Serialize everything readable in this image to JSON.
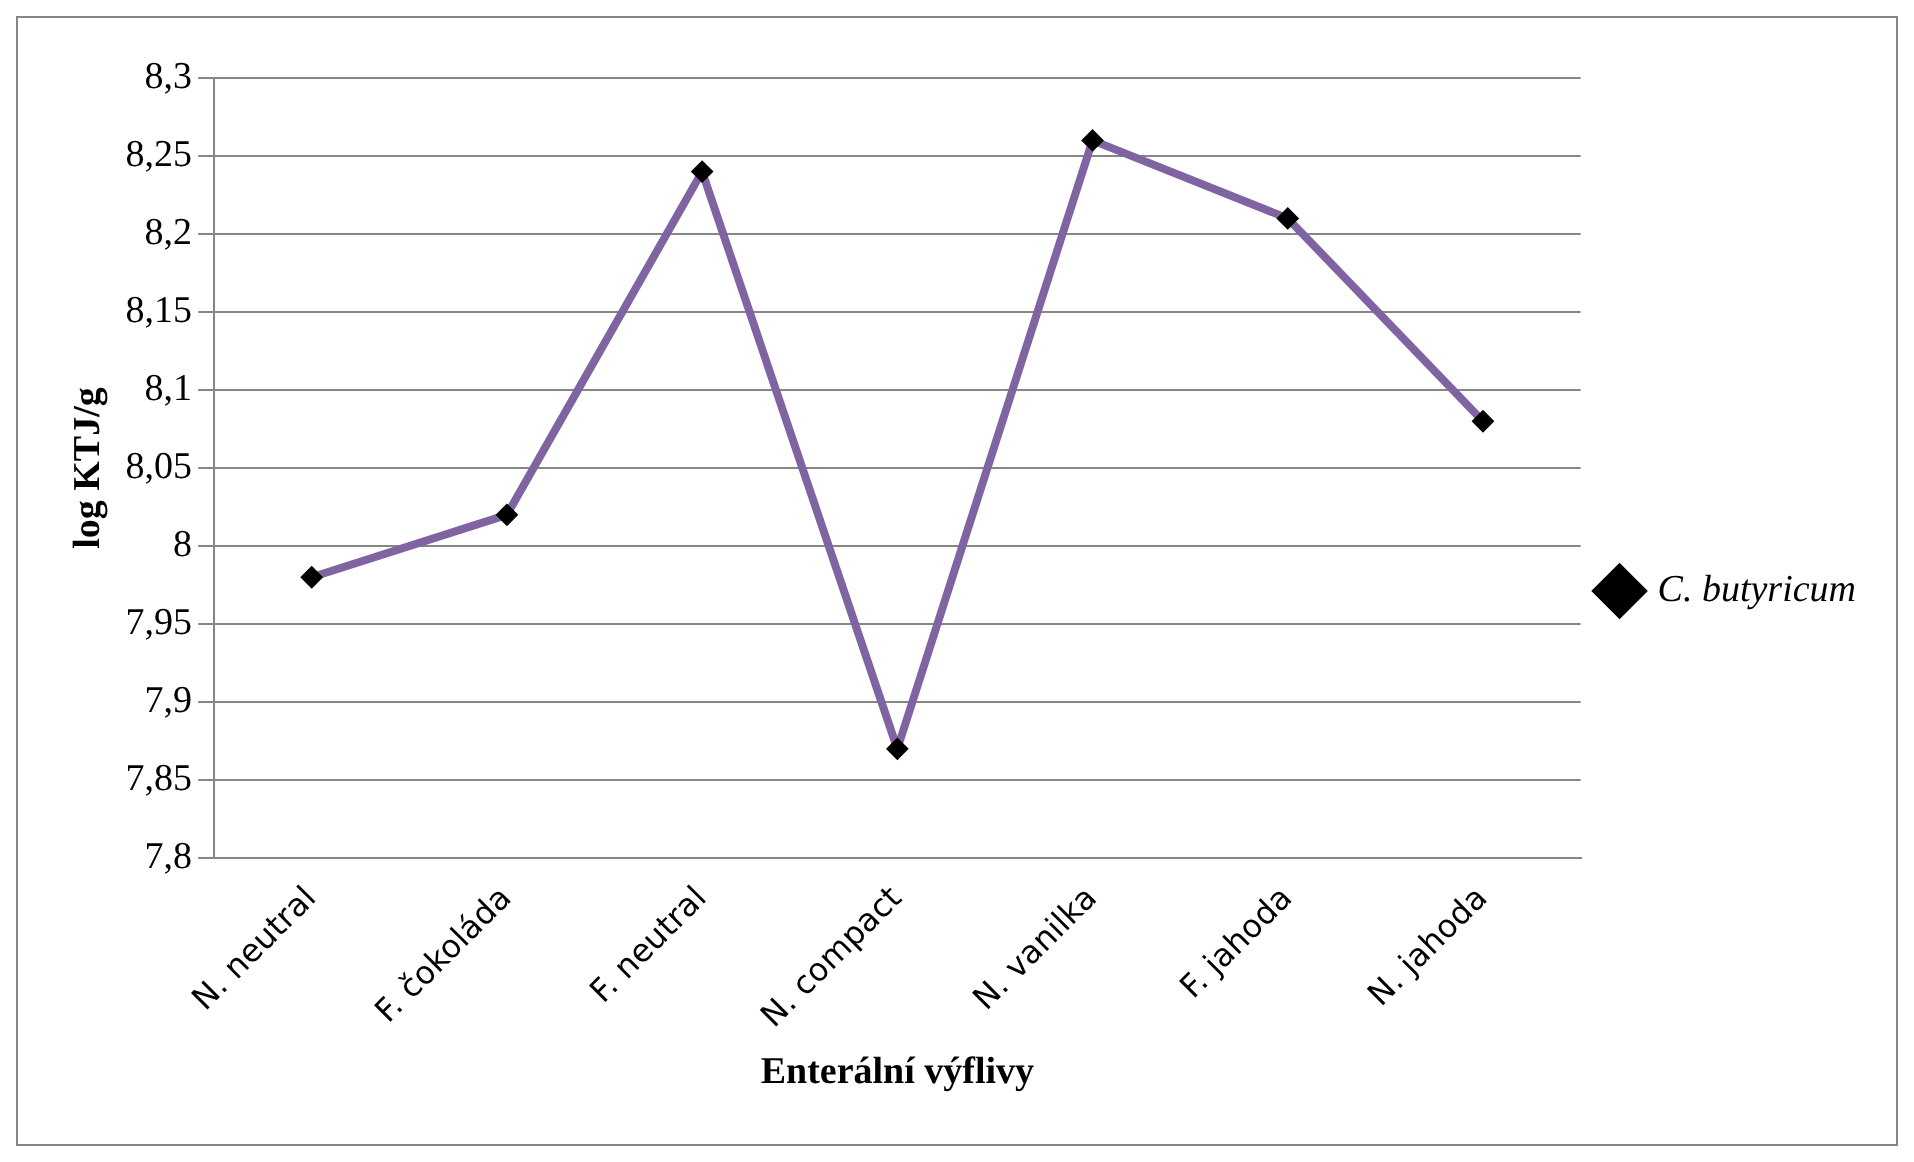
{
  "chart_data": {
    "type": "line",
    "xlabel": "Enterální výflivy",
    "ylabel": "log KTJ/g",
    "categories": [
      "N. neutral",
      "F. čokoláda",
      "F. neutral",
      "N. compact",
      "N. vanilka",
      "F. jahoda",
      "N. jahoda"
    ],
    "series": [
      {
        "name": "C. butyricum",
        "color": "#8064a2",
        "values": [
          7.98,
          8.02,
          8.24,
          7.87,
          8.26,
          8.21,
          8.08
        ]
      }
    ],
    "ylim": [
      7.8,
      8.3
    ],
    "yticks": [
      {
        "value": 7.8,
        "label": "7,8"
      },
      {
        "value": 7.85,
        "label": "7,85"
      },
      {
        "value": 7.9,
        "label": "7,9"
      },
      {
        "value": 7.95,
        "label": "7,95"
      },
      8,
      {
        "value": 8.05,
        "label": "8,05"
      },
      {
        "value": 8.1,
        "label": "8,1"
      },
      {
        "value": 8.15,
        "label": "8,15"
      },
      {
        "value": 8.2,
        "label": "8,2"
      },
      {
        "value": 8.25,
        "label": "8,25"
      },
      {
        "value": 8.3,
        "label": "8,3"
      }
    ],
    "grid": "y",
    "legend": "right",
    "marker": "diamond",
    "line_style": "solid"
  }
}
